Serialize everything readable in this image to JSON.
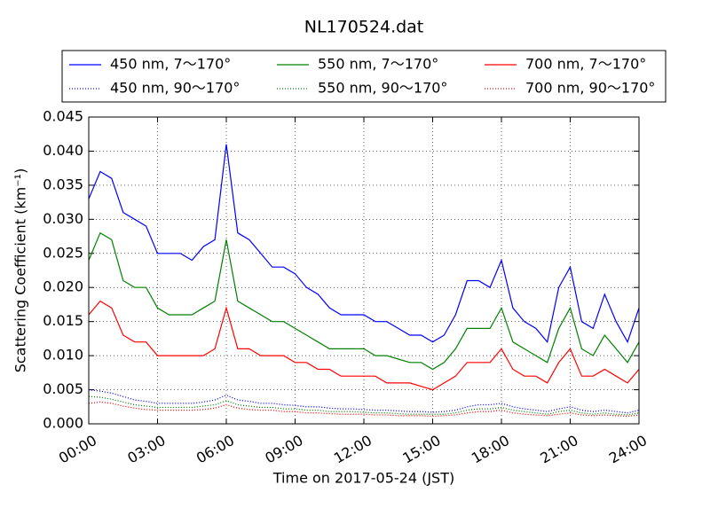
{
  "chart_data": {
    "type": "line",
    "title": "NL170524.dat",
    "xlabel": "Time on 2017-05-24 (JST)",
    "ylabel": "Scattering Coefficient (km⁻¹)",
    "x": [
      0,
      0.5,
      1,
      1.5,
      2,
      2.5,
      3,
      3.5,
      4,
      4.5,
      5,
      5.5,
      6,
      6.5,
      7,
      7.5,
      8,
      8.5,
      9,
      9.5,
      10,
      10.5,
      11,
      11.5,
      12,
      12.5,
      13,
      13.5,
      14,
      14.5,
      15,
      15.5,
      16,
      16.5,
      17,
      17.5,
      18,
      18.5,
      19,
      19.5,
      20,
      20.5,
      21,
      21.5,
      22,
      22.5,
      23,
      23.5,
      24
    ],
    "series": [
      {
        "name": "450 nm, 7～170°",
        "color": "#0000ff",
        "style": "solid",
        "values": [
          0.033,
          0.037,
          0.036,
          0.031,
          0.03,
          0.029,
          0.025,
          0.025,
          0.025,
          0.024,
          0.026,
          0.027,
          0.041,
          0.028,
          0.027,
          0.025,
          0.023,
          0.023,
          0.022,
          0.02,
          0.019,
          0.017,
          0.016,
          0.016,
          0.016,
          0.015,
          0.015,
          0.014,
          0.013,
          0.013,
          0.012,
          0.013,
          0.016,
          0.021,
          0.021,
          0.02,
          0.024,
          0.017,
          0.015,
          0.014,
          0.012,
          0.02,
          0.023,
          0.015,
          0.014,
          0.019,
          0.015,
          0.012,
          0.017
        ]
      },
      {
        "name": "550 nm, 7～170°",
        "color": "#008000",
        "style": "solid",
        "values": [
          0.024,
          0.028,
          0.027,
          0.021,
          0.02,
          0.02,
          0.017,
          0.016,
          0.016,
          0.016,
          0.017,
          0.018,
          0.027,
          0.018,
          0.017,
          0.016,
          0.015,
          0.015,
          0.014,
          0.013,
          0.012,
          0.011,
          0.011,
          0.011,
          0.011,
          0.01,
          0.01,
          0.0095,
          0.009,
          0.009,
          0.008,
          0.009,
          0.011,
          0.014,
          0.014,
          0.014,
          0.017,
          0.012,
          0.011,
          0.01,
          0.009,
          0.014,
          0.017,
          0.011,
          0.01,
          0.013,
          0.011,
          0.009,
          0.012
        ]
      },
      {
        "name": "700 nm, 7～170°",
        "color": "#ff0000",
        "style": "solid",
        "values": [
          0.016,
          0.018,
          0.017,
          0.013,
          0.012,
          0.012,
          0.01,
          0.01,
          0.01,
          0.01,
          0.01,
          0.011,
          0.017,
          0.011,
          0.011,
          0.01,
          0.01,
          0.01,
          0.009,
          0.009,
          0.008,
          0.008,
          0.007,
          0.007,
          0.007,
          0.007,
          0.006,
          0.006,
          0.006,
          0.0055,
          0.005,
          0.006,
          0.007,
          0.009,
          0.009,
          0.009,
          0.011,
          0.008,
          0.007,
          0.007,
          0.006,
          0.009,
          0.011,
          0.007,
          0.007,
          0.008,
          0.007,
          0.006,
          0.008
        ]
      },
      {
        "name": "450 nm, 90～170°",
        "color": "#0000ff",
        "style": "dotted",
        "values": [
          0.005,
          0.0048,
          0.0045,
          0.004,
          0.0035,
          0.0033,
          0.003,
          0.003,
          0.003,
          0.003,
          0.0032,
          0.0035,
          0.0042,
          0.0035,
          0.0033,
          0.003,
          0.003,
          0.0028,
          0.0027,
          0.0025,
          0.0025,
          0.0023,
          0.0022,
          0.0022,
          0.0021,
          0.002,
          0.002,
          0.0019,
          0.0018,
          0.0018,
          0.0017,
          0.0018,
          0.002,
          0.0025,
          0.0028,
          0.0028,
          0.003,
          0.0025,
          0.0022,
          0.002,
          0.0018,
          0.0022,
          0.0025,
          0.002,
          0.0018,
          0.002,
          0.0018,
          0.0016,
          0.002
        ]
      },
      {
        "name": "550 nm, 90～170°",
        "color": "#008000",
        "style": "dotted",
        "values": [
          0.004,
          0.0039,
          0.0036,
          0.0032,
          0.0028,
          0.0026,
          0.0024,
          0.0024,
          0.0024,
          0.0024,
          0.0026,
          0.0028,
          0.0034,
          0.0028,
          0.0026,
          0.0024,
          0.0024,
          0.0022,
          0.0022,
          0.002,
          0.002,
          0.0018,
          0.0018,
          0.0018,
          0.0017,
          0.0016,
          0.0016,
          0.0015,
          0.0014,
          0.0014,
          0.0014,
          0.0014,
          0.0016,
          0.002,
          0.0022,
          0.0022,
          0.0024,
          0.002,
          0.0018,
          0.0016,
          0.0014,
          0.0018,
          0.002,
          0.0016,
          0.0014,
          0.0016,
          0.0014,
          0.0013,
          0.0016
        ]
      },
      {
        "name": "700 nm, 90～170°",
        "color": "#ff0000",
        "style": "dotted",
        "values": [
          0.003,
          0.0032,
          0.003,
          0.0026,
          0.0023,
          0.0021,
          0.002,
          0.002,
          0.002,
          0.002,
          0.0021,
          0.0023,
          0.0028,
          0.0023,
          0.0021,
          0.002,
          0.002,
          0.0018,
          0.0018,
          0.0016,
          0.0016,
          0.0015,
          0.0014,
          0.0014,
          0.0014,
          0.0013,
          0.0013,
          0.0012,
          0.0012,
          0.0012,
          0.0011,
          0.0012,
          0.0013,
          0.0016,
          0.0018,
          0.0018,
          0.002,
          0.0016,
          0.0014,
          0.0013,
          0.0012,
          0.0014,
          0.0016,
          0.0013,
          0.0012,
          0.0013,
          0.0012,
          0.0011,
          0.0013
        ]
      }
    ],
    "xlim": [
      0,
      24
    ],
    "xticks": [
      {
        "value": 0,
        "label": "00:00"
      },
      {
        "value": 3,
        "label": "03:00"
      },
      {
        "value": 6,
        "label": "06:00"
      },
      {
        "value": 9,
        "label": "09:00"
      },
      {
        "value": 12,
        "label": "12:00"
      },
      {
        "value": 15,
        "label": "15:00"
      },
      {
        "value": 18,
        "label": "18:00"
      },
      {
        "value": 21,
        "label": "21:00"
      },
      {
        "value": 24,
        "label": "24:00"
      }
    ],
    "ylim": [
      0,
      0.045
    ],
    "yticks": [
      {
        "value": 0,
        "label": "0.000"
      },
      0.005,
      {
        "value": 0.01,
        "label": "0.010"
      },
      0.015,
      {
        "value": 0.02,
        "label": "0.020"
      },
      0.025,
      {
        "value": 0.03,
        "label": "0.030"
      },
      0.035,
      {
        "value": 0.04,
        "label": "0.040"
      },
      0.045
    ],
    "grid": true,
    "legend": "top"
  }
}
